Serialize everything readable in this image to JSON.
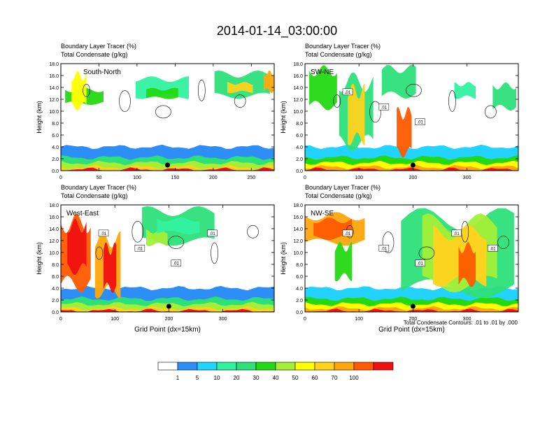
{
  "figure": {
    "title": "2014-01-14_03:00:00",
    "footnote": "Total Condensate Contours: .01 to .01 by .000"
  },
  "colorbar": {
    "colors": [
      "#ffffff",
      "#2d8ff5",
      "#22d3ff",
      "#31f2a0",
      "#2de07a",
      "#23d913",
      "#a3ef37",
      "#ffff00",
      "#ffd21e",
      "#ffa60c",
      "#ff5a00",
      "#f01010"
    ],
    "labels": [
      "1",
      "5",
      "10",
      "20",
      "30",
      "40",
      "50",
      "60",
      "70",
      "100"
    ]
  },
  "chart_data": [
    {
      "type": "heatmap",
      "panel_label": "South-North",
      "title_line1": "Boundary Layer Tracer   (%)",
      "title_line2": "Total Condensate   (g/kg)",
      "ylabel": "Height (km)",
      "xlabel": "",
      "xlim": [
        0,
        280
      ],
      "ylim": [
        0,
        18
      ],
      "xticks": [
        "0",
        "50",
        "100",
        "150",
        "200",
        "250"
      ],
      "yticks": [
        "0.0",
        "2.0",
        "4.0",
        "6.0",
        "8.0",
        "10.0",
        "12.0",
        "14.0",
        "16.0",
        "18.0"
      ],
      "marker_x": 140,
      "contour_labels": []
    },
    {
      "type": "heatmap",
      "panel_label": "SW-NE",
      "title_line1": "Boundary Layer Tracer   (%)",
      "title_line2": "Total Condensate   (g/kg)",
      "ylabel": "Height (km)",
      "xlabel": "",
      "xlim": [
        0,
        395
      ],
      "ylim": [
        0,
        18
      ],
      "xticks": [
        "0",
        "100",
        "200",
        "300"
      ],
      "yticks": [
        "0.0",
        "2.0",
        "4.0",
        "6.0",
        "8.0",
        "10.0",
        "12.0",
        "14.0",
        "16.0",
        "18.0"
      ],
      "marker_x": 200,
      "contour_labels": [
        ".01",
        ".01",
        ".01"
      ]
    },
    {
      "type": "heatmap",
      "panel_label": "West-East",
      "title_line1": "Boundary Layer Tracer   (%)",
      "title_line2": "Total Condensate   (g/kg)",
      "ylabel": "Height (km)",
      "xlabel": "Grid Point (dx=15km)",
      "xlim": [
        0,
        395
      ],
      "ylim": [
        0,
        18
      ],
      "xticks": [
        "0",
        "100",
        "200",
        "300"
      ],
      "yticks": [
        "0.0",
        "2.0",
        "4.0",
        "6.0",
        "8.0",
        "10.0",
        "12.0",
        "14.0",
        "16.0",
        "18.0"
      ],
      "marker_x": 200,
      "contour_labels": [
        ".01",
        ".01",
        ".01",
        ".01"
      ]
    },
    {
      "type": "heatmap",
      "panel_label": "NW-SE",
      "title_line1": "Boundary Layer Tracer   (%)",
      "title_line2": "Total Condensate   (g/kg)",
      "ylabel": "Height (km)",
      "xlabel": "Grid Point (dx=15km)",
      "xlim": [
        0,
        395
      ],
      "ylim": [
        0,
        18
      ],
      "xticks": [
        "0",
        "100",
        "200",
        "300"
      ],
      "yticks": [
        "0.0",
        "2.0",
        "4.0",
        "6.0",
        "8.0",
        "10.0",
        "12.0",
        "14.0",
        "16.0",
        "18.0"
      ],
      "marker_x": 200,
      "contour_labels": [
        ".01",
        ".01",
        ".01",
        ".01",
        ".01"
      ]
    }
  ]
}
